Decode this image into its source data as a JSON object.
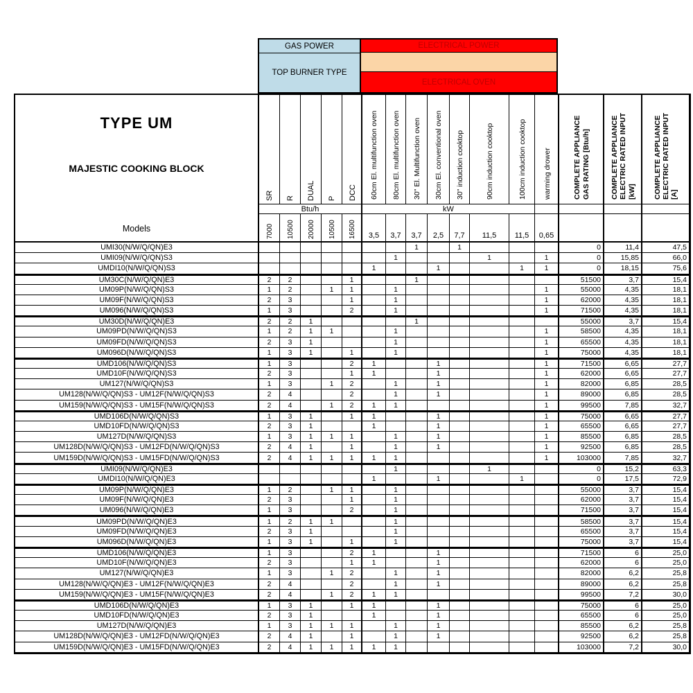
{
  "header": {
    "gas_power": "GAS POWER",
    "top_burner_type": "TOP BURNER TYPE",
    "electrical_power": "ELECTRICAL POWER",
    "electrical_oven": "ELECTRICAL OVEN",
    "type_title": "TYPE UM",
    "subtitle": "MAJESTIC COOKING BLOCK",
    "models_label": "Models",
    "btu_band": "Btu/h",
    "kw_band": "kW"
  },
  "colors": {
    "header_blue": "#BFDCE8",
    "header_red": "#FF0000",
    "header_peach": "#FBD5A7",
    "header_red_text": "#C00000"
  },
  "columns": {
    "gas": [
      {
        "label": "SR",
        "btu": "7000"
      },
      {
        "label": "R",
        "btu": "10500"
      },
      {
        "label": "DUAL",
        "btu": "20000"
      },
      {
        "label": "P",
        "btu": "10500"
      },
      {
        "label": "DCC",
        "btu": "16500"
      }
    ],
    "electrical": [
      {
        "label": "60cm El. multifunction oven",
        "kw": "3,5"
      },
      {
        "label": "80cm El. multifunction oven",
        "kw": "3,7"
      },
      {
        "label": "30\" El. Multifunction oven",
        "kw": "3,7"
      },
      {
        "label": "30cm El. conventional oven",
        "kw": "2,5"
      },
      {
        "label": "30\" induction cooktop",
        "kw": "7,7"
      },
      {
        "label": "90cm induction cooktop",
        "kw": "11,5"
      },
      {
        "label": "100cm induction cooktop",
        "kw": "11,5"
      },
      {
        "label": "warming drower",
        "kw": "0,65"
      }
    ],
    "totals": [
      {
        "lines": [
          "COMPLETE APPLIANCE",
          "GAS RATING [Btu/h]"
        ]
      },
      {
        "lines": [
          "COMPLETE APPLIANCE",
          "ELECTRIC RATED INPUT",
          "[kW]"
        ]
      },
      {
        "lines": [
          "COMPLETE APPLIANCE",
          "ELECTRIC RATED INPUT",
          "[A]"
        ]
      }
    ]
  },
  "rows": [
    {
      "model": "UMI30(N/W/Q/QN)E3",
      "group_start": false,
      "cells": [
        "",
        "",
        "",
        "",
        "",
        "",
        "",
        "1",
        "",
        "1",
        "",
        "",
        "",
        "0",
        "11,4",
        "47,5"
      ]
    },
    {
      "model": "UMI09(N/W/Q/QN)S3",
      "group_start": false,
      "cells": [
        "",
        "",
        "",
        "",
        "",
        "",
        "1",
        "",
        "",
        "",
        "1",
        "",
        "1",
        "0",
        "15,85",
        "66,0"
      ]
    },
    {
      "model": "UMDI10(N/W/Q/QN)S3",
      "group_start": false,
      "cells": [
        "",
        "",
        "",
        "",
        "",
        "1",
        "",
        "",
        "1",
        "",
        "",
        "1",
        "1",
        "0",
        "18,15",
        "75,6"
      ]
    },
    {
      "model": "UM30C(N/W/Q/QN)E3",
      "group_start": true,
      "cells": [
        "2",
        "2",
        "",
        "",
        "1",
        "",
        "",
        "1",
        "",
        "",
        "",
        "",
        "",
        "51500",
        "3,7",
        "15,4"
      ]
    },
    {
      "model": "UM09P(N/W/Q/QN)S3",
      "group_start": false,
      "cells": [
        "1",
        "2",
        "",
        "1",
        "1",
        "",
        "1",
        "",
        "",
        "",
        "",
        "",
        "1",
        "55000",
        "4,35",
        "18,1"
      ]
    },
    {
      "model": "UM09F(N/W/Q/QN)S3",
      "group_start": false,
      "cells": [
        "2",
        "3",
        "",
        "",
        "1",
        "",
        "1",
        "",
        "",
        "",
        "",
        "",
        "1",
        "62000",
        "4,35",
        "18,1"
      ]
    },
    {
      "model": "UM096(N/W/Q/QN)S3",
      "group_start": false,
      "cells": [
        "1",
        "3",
        "",
        "",
        "2",
        "",
        "1",
        "",
        "",
        "",
        "",
        "",
        "1",
        "71500",
        "4,35",
        "18,1"
      ]
    },
    {
      "model": "UM30D(N/W/Q/QN)E3",
      "group_start": true,
      "cells": [
        "2",
        "2",
        "1",
        "",
        "",
        "",
        "",
        "1",
        "",
        "",
        "",
        "",
        "",
        "55000",
        "3,7",
        "15,4"
      ]
    },
    {
      "model": "UM09PD(N/W/Q/QN)S3",
      "group_start": false,
      "cells": [
        "1",
        "2",
        "1",
        "1",
        "",
        "",
        "1",
        "",
        "",
        "",
        "",
        "",
        "1",
        "58500",
        "4,35",
        "18,1"
      ]
    },
    {
      "model": "UM09FD(N/W/Q/QN)S3",
      "group_start": false,
      "cells": [
        "2",
        "3",
        "1",
        "",
        "",
        "",
        "1",
        "",
        "",
        "",
        "",
        "",
        "1",
        "65500",
        "4,35",
        "18,1"
      ]
    },
    {
      "model": "UM096D(N/W/Q/QN)S3",
      "group_start": false,
      "cells": [
        "1",
        "3",
        "1",
        "",
        "1",
        "",
        "1",
        "",
        "",
        "",
        "",
        "",
        "1",
        "75000",
        "4,35",
        "18,1"
      ]
    },
    {
      "model": "UMD106(N/W/Q/QN)S3",
      "group_start": true,
      "cells": [
        "1",
        "3",
        "",
        "",
        "2",
        "1",
        "",
        "",
        "1",
        "",
        "",
        "",
        "1",
        "71500",
        "6,65",
        "27,7"
      ]
    },
    {
      "model": "UMD10F(N/W/Q/QN)S3",
      "group_start": false,
      "cells": [
        "2",
        "3",
        "",
        "",
        "1",
        "1",
        "",
        "",
        "1",
        "",
        "",
        "",
        "1",
        "62000",
        "6,65",
        "27,7"
      ]
    },
    {
      "model": "UM127(N/W/Q/QN)S3",
      "group_start": false,
      "cells": [
        "1",
        "3",
        "",
        "1",
        "2",
        "",
        "1",
        "",
        "1",
        "",
        "",
        "",
        "1",
        "82000",
        "6,85",
        "28,5"
      ]
    },
    {
      "model": "UM128(N/W/Q/QN)S3 - UM12F(N/W/Q/QN)S3",
      "group_start": false,
      "cells": [
        "2",
        "4",
        "",
        "",
        "2",
        "",
        "1",
        "",
        "1",
        "",
        "",
        "",
        "1",
        "89000",
        "6,85",
        "28,5"
      ]
    },
    {
      "model": "UM159(N/W/Q/QN)S3 - UM15F(N/W/Q/QN)S3",
      "group_start": false,
      "cells": [
        "2",
        "4",
        "",
        "1",
        "2",
        "1",
        "1",
        "",
        "",
        "",
        "",
        "",
        "1",
        "99500",
        "7,85",
        "32,7"
      ]
    },
    {
      "model": "UMD106D(N/W/Q/QN)S3",
      "group_start": true,
      "cells": [
        "1",
        "3",
        "1",
        "",
        "1",
        "1",
        "",
        "",
        "1",
        "",
        "",
        "",
        "1",
        "75000",
        "6,65",
        "27,7"
      ]
    },
    {
      "model": "UMD10FD(N/W/Q/QN)S3",
      "group_start": false,
      "cells": [
        "2",
        "3",
        "1",
        "",
        "",
        "1",
        "",
        "",
        "1",
        "",
        "",
        "",
        "1",
        "65500",
        "6,65",
        "27,7"
      ]
    },
    {
      "model": "UM127D(N/W/Q/QN)S3",
      "group_start": false,
      "cells": [
        "1",
        "3",
        "1",
        "1",
        "1",
        "",
        "1",
        "",
        "1",
        "",
        "",
        "",
        "1",
        "85500",
        "6,85",
        "28,5"
      ]
    },
    {
      "model": "UM128D(N/W/Q/QN)S3 - UM12FD(N/W/Q/QN)S3",
      "group_start": false,
      "cells": [
        "2",
        "4",
        "1",
        "",
        "1",
        "",
        "1",
        "",
        "1",
        "",
        "",
        "",
        "1",
        "92500",
        "6,85",
        "28,5"
      ]
    },
    {
      "model": "UM159D(N/W/Q/QN)S3 - UM15FD(N/W/Q/QN)S3",
      "group_start": false,
      "cells": [
        "2",
        "4",
        "1",
        "1",
        "1",
        "1",
        "1",
        "",
        "",
        "",
        "",
        "",
        "1",
        "103000",
        "7,85",
        "32,7"
      ]
    },
    {
      "model": "UMI09(N/W/Q/QN)E3",
      "group_start": true,
      "cells": [
        "",
        "",
        "",
        "",
        "",
        "",
        "1",
        "",
        "",
        "",
        "1",
        "",
        "",
        "0",
        "15,2",
        "63,3"
      ]
    },
    {
      "model": "UMDI10(N/W/Q/QN)E3",
      "group_start": false,
      "cells": [
        "",
        "",
        "",
        "",
        "",
        "1",
        "",
        "",
        "1",
        "",
        "",
        "1",
        "",
        "0",
        "17,5",
        "72,9"
      ]
    },
    {
      "model": "UM09P(N/W/Q/QN)E3",
      "group_start": true,
      "cells": [
        "1",
        "2",
        "",
        "1",
        "1",
        "",
        "1",
        "",
        "",
        "",
        "",
        "",
        "",
        "55000",
        "3,7",
        "15,4"
      ]
    },
    {
      "model": "UM09F(N/W/Q/QN)E3",
      "group_start": false,
      "cells": [
        "2",
        "3",
        "",
        "",
        "1",
        "",
        "1",
        "",
        "",
        "",
        "",
        "",
        "",
        "62000",
        "3,7",
        "15,4"
      ]
    },
    {
      "model": "UM096(N/W/Q/QN)E3",
      "group_start": false,
      "cells": [
        "1",
        "3",
        "",
        "",
        "2",
        "",
        "1",
        "",
        "",
        "",
        "",
        "",
        "",
        "71500",
        "3,7",
        "15,4"
      ]
    },
    {
      "model": "UM09PD(N/W/Q/QN)E3",
      "group_start": true,
      "cells": [
        "1",
        "2",
        "1",
        "1",
        "",
        "",
        "1",
        "",
        "",
        "",
        "",
        "",
        "",
        "58500",
        "3,7",
        "15,4"
      ]
    },
    {
      "model": "UM09FD(N/W/Q/QN)E3",
      "group_start": false,
      "cells": [
        "2",
        "3",
        "1",
        "",
        "",
        "",
        "1",
        "",
        "",
        "",
        "",
        "",
        "",
        "65500",
        "3,7",
        "15,4"
      ]
    },
    {
      "model": "UM096D(N/W/Q/QN)E3",
      "group_start": false,
      "cells": [
        "1",
        "3",
        "1",
        "",
        "1",
        "",
        "1",
        "",
        "",
        "",
        "",
        "",
        "",
        "75000",
        "3,7",
        "15,4"
      ]
    },
    {
      "model": "UMD106(N/W/Q/QN)E3",
      "group_start": true,
      "cells": [
        "1",
        "3",
        "",
        "",
        "2",
        "1",
        "",
        "",
        "1",
        "",
        "",
        "",
        "",
        "71500",
        "6",
        "25,0"
      ]
    },
    {
      "model": "UMD10F(N/W/Q/QN)E3",
      "group_start": false,
      "cells": [
        "2",
        "3",
        "",
        "",
        "1",
        "1",
        "",
        "",
        "1",
        "",
        "",
        "",
        "",
        "62000",
        "6",
        "25,0"
      ]
    },
    {
      "model": "UM127(N/W/Q/QN)E3",
      "group_start": false,
      "cells": [
        "1",
        "3",
        "",
        "1",
        "2",
        "",
        "1",
        "",
        "1",
        "",
        "",
        "",
        "",
        "82000",
        "6,2",
        "25,8"
      ]
    },
    {
      "model": "UM128(N/W/Q/QN)E3 - UM12F(N/W/Q/QN)E3",
      "group_start": false,
      "cells": [
        "2",
        "4",
        "",
        "",
        "2",
        "",
        "1",
        "",
        "1",
        "",
        "",
        "",
        "",
        "89000",
        "6,2",
        "25,8"
      ]
    },
    {
      "model": "UM159(N/W/Q/QN)E3 - UM15F(N/W/Q/QN)E3",
      "group_start": false,
      "cells": [
        "2",
        "4",
        "",
        "1",
        "2",
        "1",
        "1",
        "",
        "",
        "",
        "",
        "",
        "",
        "99500",
        "7,2",
        "30,0"
      ]
    },
    {
      "model": "UMD106D(N/W/Q/QN)E3",
      "group_start": true,
      "cells": [
        "1",
        "3",
        "1",
        "",
        "1",
        "1",
        "",
        "",
        "1",
        "",
        "",
        "",
        "",
        "75000",
        "6",
        "25,0"
      ]
    },
    {
      "model": "UMD10FD(N/W/Q/QN)E3",
      "group_start": false,
      "cells": [
        "2",
        "3",
        "1",
        "",
        "",
        "1",
        "",
        "",
        "1",
        "",
        "",
        "",
        "",
        "65500",
        "6",
        "25,0"
      ]
    },
    {
      "model": "UM127D(N/W/Q/QN)E3",
      "group_start": false,
      "cells": [
        "1",
        "3",
        "1",
        "1",
        "1",
        "",
        "1",
        "",
        "1",
        "",
        "",
        "",
        "",
        "85500",
        "6,2",
        "25,8"
      ]
    },
    {
      "model": "UM128D(N/W/Q/QN)E3 - UM12FD(N/W/Q/QN)E3",
      "group_start": false,
      "cells": [
        "2",
        "4",
        "1",
        "",
        "1",
        "",
        "1",
        "",
        "1",
        "",
        "",
        "",
        "",
        "92500",
        "6,2",
        "25,8"
      ]
    },
    {
      "model": "UM159D(N/W/Q/QN)E3 - UM15FD(N/W/Q/QN)E3",
      "group_start": false,
      "cells": [
        "2",
        "4",
        "1",
        "1",
        "1",
        "1",
        "1",
        "",
        "",
        "",
        "",
        "",
        "",
        "103000",
        "7,2",
        "30,0"
      ]
    }
  ]
}
